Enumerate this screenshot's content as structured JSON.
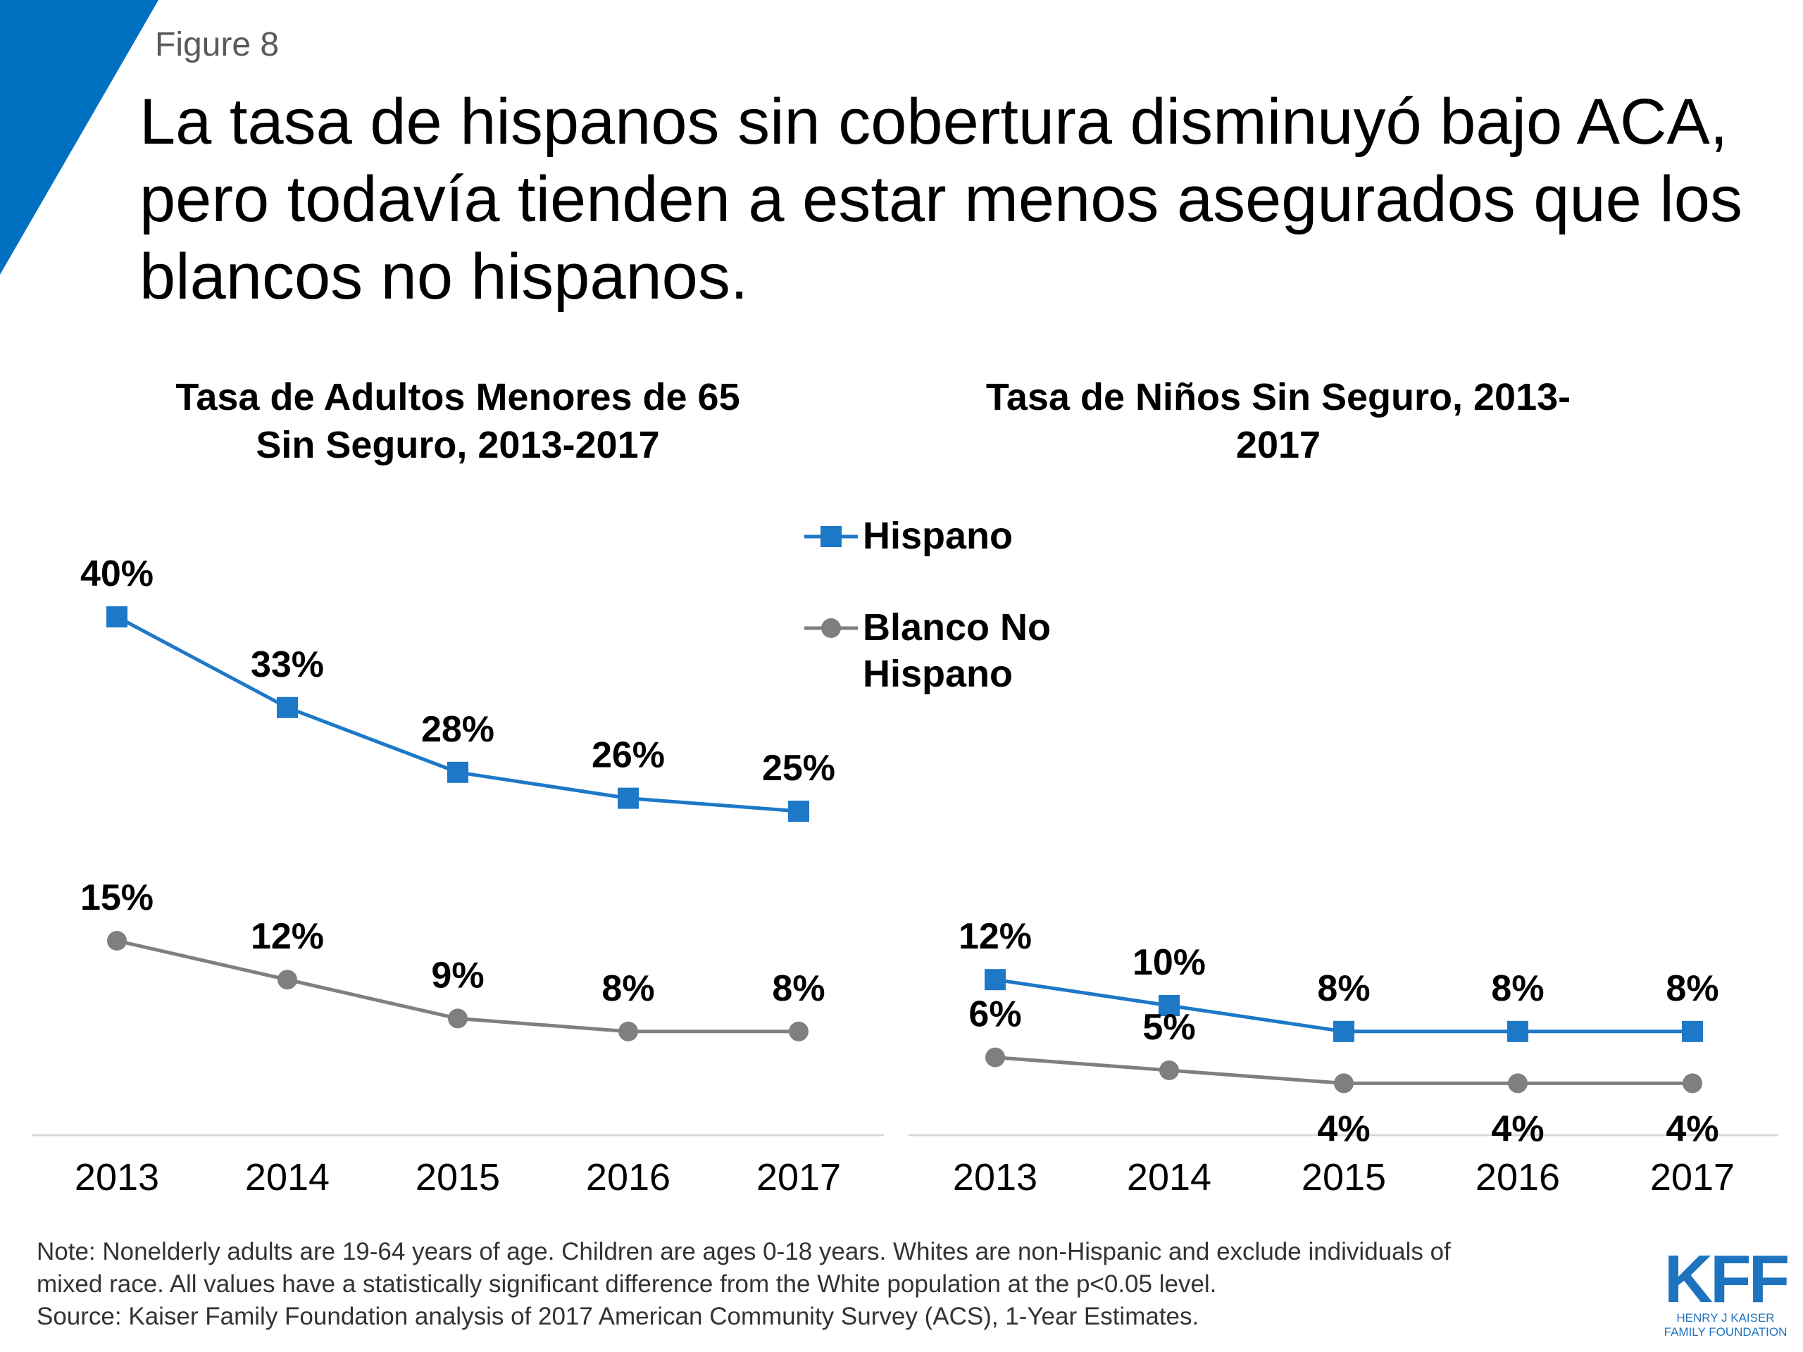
{
  "figure_label": "Figure 8",
  "title": "La tasa de hispanos sin cobertura disminuyó bajo ACA, pero todavía tienden a estar menos asegurados que los blancos no hispanos.",
  "colors": {
    "accent_blue": "#0070c0",
    "series_hispano": "#1e78c8",
    "series_blanco": "#7f7f7f",
    "axis_line": "#d9d9d9",
    "logo_blue": "#1e73be"
  },
  "legend": {
    "hispano": "Hispano",
    "blanco": "Blanco No Hispano"
  },
  "chart_data": [
    {
      "type": "line",
      "title": "Tasa de Adultos Menores de 65 Sin Seguro, 2013-2017",
      "categories": [
        "2013",
        "2014",
        "2015",
        "2016",
        "2017"
      ],
      "series": [
        {
          "name": "Hispano",
          "values": [
            40,
            33,
            28,
            26,
            25
          ],
          "labels": [
            "40%",
            "33%",
            "28%",
            "26%",
            "25%"
          ],
          "marker": "square"
        },
        {
          "name": "Blanco No Hispano",
          "values": [
            15,
            12,
            9,
            8,
            8
          ],
          "labels": [
            "15%",
            "12%",
            "9%",
            "8%",
            "8%"
          ],
          "marker": "circle"
        }
      ],
      "ylim": [
        0,
        42
      ],
      "grid": false
    },
    {
      "type": "line",
      "title": "Tasa de Niños Sin Seguro, 2013-2017",
      "categories": [
        "2013",
        "2014",
        "2015",
        "2016",
        "2017"
      ],
      "series": [
        {
          "name": "Hispano",
          "values": [
            12,
            10,
            8,
            8,
            8
          ],
          "labels": [
            "12%",
            "10%",
            "8%",
            "8%",
            "8%"
          ],
          "marker": "square"
        },
        {
          "name": "Blanco No Hispano",
          "values": [
            6,
            5,
            4,
            4,
            4
          ],
          "labels": [
            "6%",
            "5%",
            "4%",
            "4%",
            "4%"
          ],
          "marker": "circle"
        }
      ],
      "ylim": [
        0,
        42
      ],
      "grid": false
    }
  ],
  "note_lines": [
    "Note: Nonelderly adults are 19-64 years of age. Children are ages 0-18 years. Whites are non-Hispanic and exclude individuals of",
    "mixed race. All values have a statistically significant difference from the White population at the p<0.05 level.",
    "Source: Kaiser Family Foundation analysis of 2017 American Community Survey (ACS), 1-Year Estimates."
  ],
  "logo": {
    "main": "KFF",
    "sub_line1": "HENRY J KAISER",
    "sub_line2": "FAMILY FOUNDATION"
  }
}
